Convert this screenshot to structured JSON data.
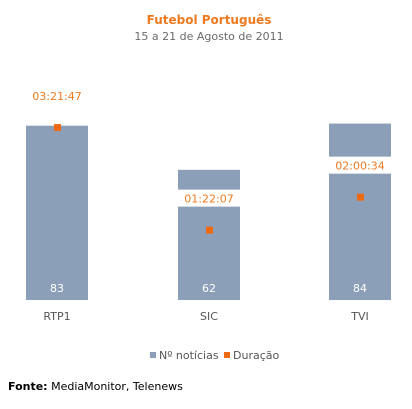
{
  "chart_data": {
    "type": "bar",
    "title": "Futebol Português",
    "subtitle": "15 a 21 de Agosto de 2011",
    "categories": [
      "RTP1",
      "SIC",
      "TVI"
    ],
    "series": [
      {
        "name": "Nº notícias",
        "values": [
          83,
          62,
          84
        ],
        "color": "#8ba0b8",
        "labels": [
          "83",
          "62",
          "84"
        ]
      },
      {
        "name": "Duração",
        "values": [
          "03:21:47",
          "01:22:07",
          "02:00:34"
        ],
        "color": "#ee6a12",
        "labels": [
          "03:21:47",
          "01:22:07",
          "02:00:34"
        ]
      }
    ],
    "legend_position": "bottom",
    "grid": false
  },
  "source": {
    "label": "Fonte:",
    "text": "MediaMonitor, Telenews"
  }
}
